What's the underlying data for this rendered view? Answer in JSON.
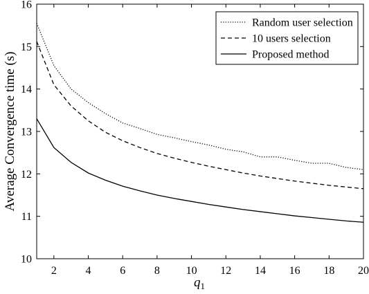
{
  "chart_data": {
    "type": "line",
    "title": "",
    "xlabel": "q",
    "xlabel_subscript": "1",
    "ylabel": "Average Convergence time (s)",
    "xlim": [
      1,
      20
    ],
    "ylim": [
      10,
      16
    ],
    "xticks": [
      2,
      4,
      6,
      8,
      10,
      12,
      14,
      16,
      18,
      20
    ],
    "yticks": [
      10,
      11,
      12,
      13,
      14,
      15,
      16
    ],
    "grid": false,
    "legend_position": "top-right",
    "x": [
      1,
      2,
      3,
      4,
      5,
      6,
      7,
      8,
      9,
      10,
      11,
      12,
      13,
      14,
      15,
      16,
      17,
      18,
      19,
      20
    ],
    "series": [
      {
        "name": "Random user selection",
        "line_style": "dotted",
        "color": "#000000",
        "values": [
          15.55,
          14.55,
          14.0,
          13.68,
          13.42,
          13.2,
          13.07,
          12.93,
          12.85,
          12.76,
          12.68,
          12.58,
          12.52,
          12.4,
          12.4,
          12.32,
          12.25,
          12.25,
          12.15,
          12.1
        ]
      },
      {
        "name": "10 users selection",
        "line_style": "dashed",
        "color": "#000000",
        "values": [
          15.12,
          14.1,
          13.6,
          13.25,
          12.98,
          12.78,
          12.62,
          12.48,
          12.37,
          12.27,
          12.18,
          12.1,
          12.02,
          11.95,
          11.89,
          11.83,
          11.78,
          11.73,
          11.69,
          11.65
        ]
      },
      {
        "name": "Proposed method",
        "line_style": "solid",
        "color": "#000000",
        "values": [
          13.3,
          12.62,
          12.27,
          12.02,
          11.85,
          11.71,
          11.6,
          11.5,
          11.42,
          11.35,
          11.28,
          11.22,
          11.16,
          11.11,
          11.06,
          11.01,
          10.97,
          10.93,
          10.89,
          10.86
        ]
      }
    ]
  }
}
